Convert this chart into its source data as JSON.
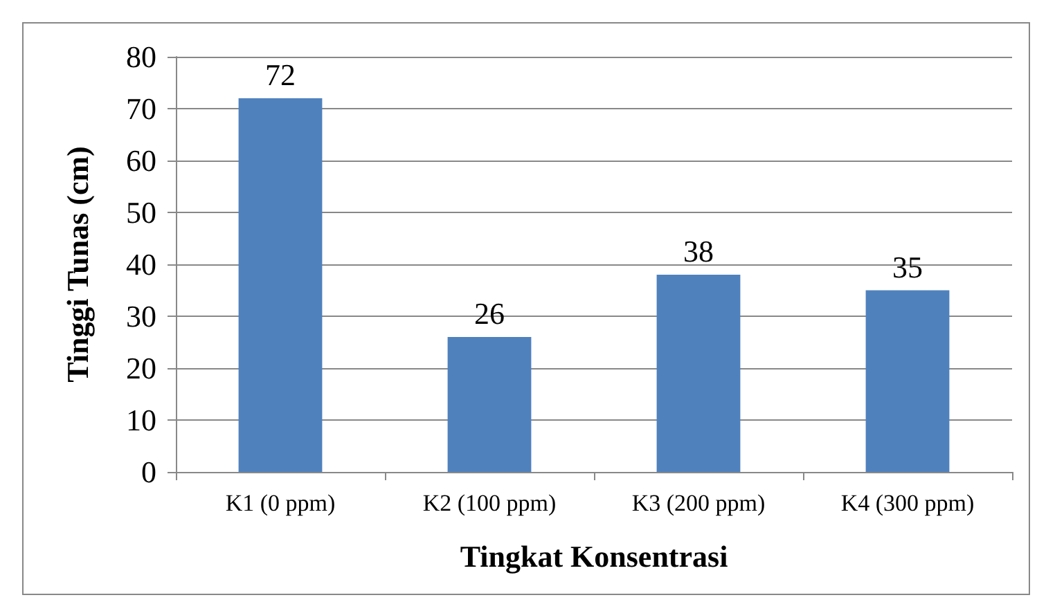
{
  "chart_data": {
    "type": "bar",
    "xlabel": "Tingkat Konsentrasi",
    "ylabel": "Tinggi Tunas (cm)",
    "categories": [
      "K1 (0 ppm)",
      "K2 (100 ppm)",
      "K3 (200 ppm)",
      "K4 (300 ppm)"
    ],
    "values": [
      72,
      26,
      38,
      35
    ],
    "color": "#4f81bd",
    "ylim": [
      0,
      80
    ],
    "yticks": [
      0,
      10,
      20,
      30,
      40,
      50,
      60,
      70,
      80
    ],
    "grid": "y",
    "data_labels": true
  }
}
